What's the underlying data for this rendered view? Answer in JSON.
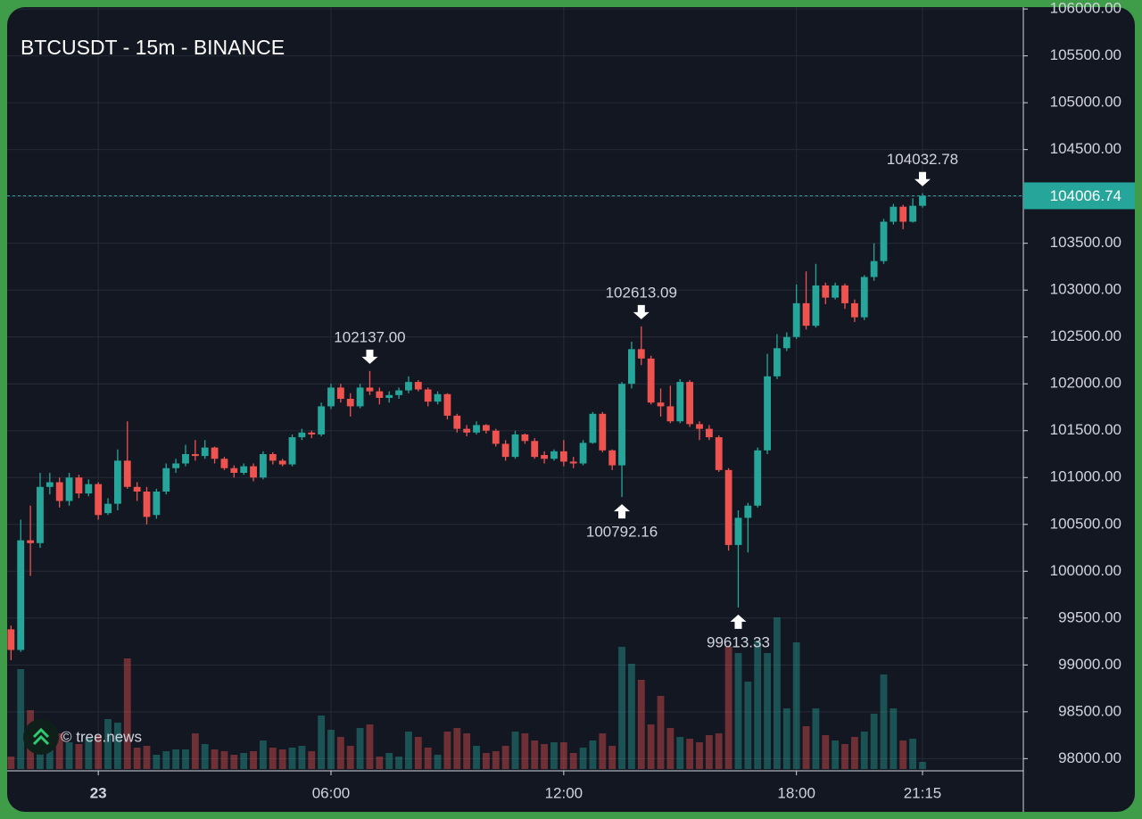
{
  "chart_data": {
    "type": "candlestick",
    "title": "BTCUSDT - 15m - BINANCE",
    "watermark": "© tree.news",
    "up_color": "#26a69a",
    "down_color": "#ef5350",
    "grid": true,
    "open": [
      99380,
      99160,
      100330,
      100300,
      100900,
      100950,
      100750,
      101000,
      100830,
      100930,
      100620,
      100720,
      101180,
      100900,
      100850,
      100600,
      100850,
      101100,
      101150,
      101250,
      101230,
      101320,
      101200,
      101100,
      101050,
      101120,
      101000,
      101250,
      101180,
      101140,
      101430,
      101480,
      101460,
      101760,
      101960,
      101840,
      101760,
      101960,
      101920,
      101850,
      101880,
      101930,
      102020,
      101940,
      101810,
      101890,
      101660,
      101520,
      101480,
      101560,
      101500,
      101360,
      101220,
      101460,
      101390,
      101240,
      101200,
      101280,
      101170,
      101150,
      101370,
      101680,
      101290,
      101130,
      102000,
      102370,
      102270,
      101800,
      101760,
      101600,
      102020,
      101570,
      101520,
      101430,
      101080,
      100280,
      100570,
      100700,
      101290,
      102080,
      102380,
      102500,
      102860,
      102620,
      103050,
      102920,
      103050,
      102860,
      102710,
      103140,
      103310,
      103730,
      103890,
      103730,
      103900
    ],
    "high": [
      99420,
      100550,
      100700,
      101050,
      101050,
      101000,
      101050,
      101030,
      100980,
      100950,
      100780,
      101300,
      101600,
      100950,
      100900,
      100880,
      101150,
      101200,
      101350,
      101400,
      101400,
      101330,
      101220,
      101130,
      101150,
      101150,
      101280,
      101270,
      101200,
      101460,
      101520,
      101500,
      101800,
      102000,
      102000,
      101900,
      102000,
      102137,
      101960,
      101920,
      101960,
      102080,
      102040,
      101960,
      101920,
      101900,
      101680,
      101560,
      101600,
      101570,
      101520,
      101400,
      101500,
      101470,
      101420,
      101280,
      101300,
      101400,
      101220,
      101400,
      101700,
      101700,
      101300,
      102020,
      102450,
      102613.09,
      102300,
      101950,
      101980,
      102050,
      102040,
      101600,
      101560,
      101450,
      101100,
      100650,
      100730,
      101320,
      102320,
      102530,
      102550,
      103060,
      103200,
      103280,
      103080,
      103080,
      103070,
      102900,
      103160,
      103500,
      103760,
      103920,
      103910,
      103980,
      104032.78
    ],
    "low": [
      99050,
      99140,
      99950,
      100250,
      100820,
      100680,
      100700,
      100780,
      100800,
      100550,
      100600,
      100650,
      100880,
      100750,
      100500,
      100560,
      100820,
      101050,
      101120,
      101180,
      101200,
      101150,
      101080,
      101000,
      101030,
      100960,
      100980,
      101140,
      101120,
      101120,
      101400,
      101420,
      101440,
      101730,
      101800,
      101650,
      101740,
      101880,
      101780,
      101800,
      101840,
      101900,
      101920,
      101760,
      101780,
      101620,
      101480,
      101440,
      101460,
      101470,
      101330,
      101180,
      101200,
      101360,
      101200,
      101150,
      101180,
      101120,
      101100,
      101130,
      101360,
      101270,
      101080,
      100792.16,
      101950,
      102200,
      101780,
      101650,
      101580,
      101580,
      101540,
      101400,
      101400,
      101060,
      100220,
      99613.33,
      100200,
      100680,
      101250,
      102050,
      102350,
      102480,
      102580,
      102600,
      102850,
      102900,
      102800,
      102660,
      102680,
      103100,
      103280,
      103700,
      103650,
      103720,
      103880
    ],
    "close": [
      99160,
      100330,
      100300,
      100900,
      100950,
      100750,
      101000,
      100830,
      100930,
      100600,
      100720,
      101180,
      100900,
      100850,
      100580,
      100850,
      101100,
      101150,
      101250,
      101230,
      101320,
      101200,
      101100,
      101050,
      101120,
      101000,
      101250,
      101180,
      101140,
      101430,
      101480,
      101460,
      101760,
      101960,
      101840,
      101760,
      101960,
      101920,
      101850,
      101880,
      101930,
      102020,
      101940,
      101810,
      101890,
      101660,
      101520,
      101480,
      101560,
      101500,
      101360,
      101220,
      101460,
      101390,
      101220,
      101200,
      101280,
      101170,
      101150,
      101370,
      101680,
      101290,
      101130,
      102000,
      102370,
      102270,
      101800,
      101760,
      101600,
      102020,
      101570,
      101520,
      101430,
      101080,
      100280,
      100570,
      100700,
      101290,
      102080,
      102380,
      102500,
      102860,
      102620,
      103050,
      102920,
      103050,
      102860,
      102710,
      103140,
      103310,
      103730,
      103890,
      103730,
      103900,
      104006.74
    ],
    "volume": [
      14,
      112,
      66,
      40,
      32,
      40,
      30,
      28,
      36,
      38,
      56,
      52,
      124,
      24,
      26,
      16,
      20,
      22,
      22,
      40,
      28,
      22,
      20,
      16,
      18,
      20,
      32,
      24,
      22,
      24,
      26,
      20,
      60,
      44,
      36,
      26,
      46,
      50,
      14,
      18,
      14,
      42,
      36,
      24,
      16,
      42,
      46,
      40,
      26,
      18,
      20,
      26,
      42,
      40,
      32,
      28,
      30,
      30,
      18,
      24,
      32,
      40,
      26,
      137,
      118,
      100,
      50,
      82,
      46,
      36,
      34,
      30,
      38,
      40,
      137,
      130,
      98,
      144,
      130,
      170,
      68,
      142,
      48,
      68,
      38,
      32,
      28,
      36,
      42,
      62,
      106,
      68,
      32,
      34,
      8
    ],
    "last_price_label": "104006.74",
    "annotations": [
      {
        "text": "102137.00",
        "index": 37,
        "kind": "high"
      },
      {
        "text": "102613.09",
        "index": 65,
        "kind": "high"
      },
      {
        "text": "104032.78",
        "index": 94,
        "kind": "high"
      },
      {
        "text": "100792.16",
        "index": 63,
        "kind": "low"
      },
      {
        "text": "99613.33",
        "index": 75,
        "kind": "low"
      }
    ],
    "xlim": [
      -0.4,
      104.4
    ],
    "xticks": [
      {
        "value": 9,
        "label": "23"
      },
      {
        "value": 33,
        "label": "06:00"
      },
      {
        "value": 57,
        "label": "12:00"
      },
      {
        "value": 81,
        "label": "18:00"
      },
      {
        "value": 94,
        "label": "21:15"
      }
    ],
    "ylim": [
      97870,
      106020
    ],
    "yticks": [
      {
        "value": 98000,
        "label": "98000.00"
      },
      {
        "value": 98500,
        "label": "98500.00"
      },
      {
        "value": 99000,
        "label": "99000.00"
      },
      {
        "value": 99500,
        "label": "99500.00"
      },
      {
        "value": 100000,
        "label": "100000.00"
      },
      {
        "value": 100500,
        "label": "100500.00"
      },
      {
        "value": 101000,
        "label": "101000.00"
      },
      {
        "value": 101500,
        "label": "101500.00"
      },
      {
        "value": 102000,
        "label": "102000.00"
      },
      {
        "value": 102500,
        "label": "102500.00"
      },
      {
        "value": 103000,
        "label": "103000.00"
      },
      {
        "value": 103500,
        "label": "103500.00"
      },
      {
        "value": 104000,
        "label": "104000.00"
      },
      {
        "value": 104500,
        "label": "104500.00"
      },
      {
        "value": 105000,
        "label": "105000.00"
      },
      {
        "value": 105500,
        "label": "105500.00"
      },
      {
        "value": 106000,
        "label": "106000.00"
      }
    ]
  }
}
